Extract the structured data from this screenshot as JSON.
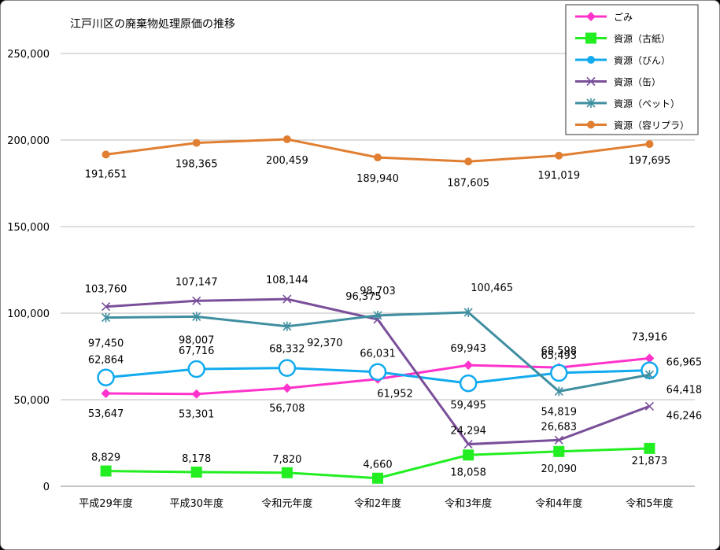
{
  "chart_data": {
    "type": "line",
    "title": "江戸川区の廃棄物処理原価の推移",
    "xlabel": "",
    "ylabel": "",
    "ylim": [
      0,
      250000
    ],
    "yticks": [
      "0",
      "50,000",
      "100,000",
      "150,000",
      "200,000",
      "250,000"
    ],
    "grid": true,
    "legend_position": "top-right",
    "categories": [
      "平成29年度",
      "平成30年度",
      "令和元年度",
      "令和2年度",
      "令和3年度",
      "令和4年度",
      "令和5年度"
    ],
    "series": [
      {
        "name": "ごみ",
        "color": "#ff33cc",
        "marker": "diamond",
        "values": [
          53647,
          53301,
          56708,
          61952,
          69943,
          68598,
          73916
        ],
        "labels": [
          "53,647",
          "53,301",
          "56,708",
          "61,952",
          "69,943",
          "68,598",
          "73,916"
        ]
      },
      {
        "name": "資源（古紙）",
        "color": "#22ee22",
        "marker": "square",
        "values": [
          8829,
          8178,
          7820,
          4660,
          18058,
          20090,
          21873
        ],
        "labels": [
          "8,829",
          "8,178",
          "7,820",
          "4,660",
          "18,058",
          "20,090",
          "21,873"
        ]
      },
      {
        "name": "資源（びん）",
        "color": "#11aaee",
        "marker": "circle",
        "values": [
          62864,
          67716,
          68332,
          66031,
          59495,
          65493,
          66965
        ],
        "labels": [
          "62,864",
          "67,716",
          "68,332",
          "66,031",
          "59,495",
          "65,493",
          "66,965"
        ]
      },
      {
        "name": "資源（缶）",
        "color": "#7a4f9a",
        "marker": "x",
        "values": [
          103760,
          107147,
          108144,
          96375,
          24294,
          26683,
          46246
        ],
        "labels": [
          "103,760",
          "107,147",
          "108,144",
          "96,375",
          "24,294",
          "26,683",
          "46,246"
        ]
      },
      {
        "name": "資源（ペット）",
        "color": "#3f8fa0",
        "marker": "star",
        "values": [
          97450,
          98007,
          92370,
          98703,
          100465,
          54819,
          64418
        ],
        "labels": [
          "97,450",
          "98,007",
          "92,370",
          "98,703",
          "100,465",
          "54,819",
          "64,418"
        ]
      },
      {
        "name": "資源（容リプラ）",
        "color": "#e07f32",
        "marker": "dot",
        "values": [
          191651,
          198365,
          200459,
          189940,
          187605,
          191019,
          197695
        ],
        "labels": [
          "191,651",
          "198,365",
          "200,459",
          "189,940",
          "187,605",
          "191,019",
          "197,695"
        ]
      }
    ]
  }
}
